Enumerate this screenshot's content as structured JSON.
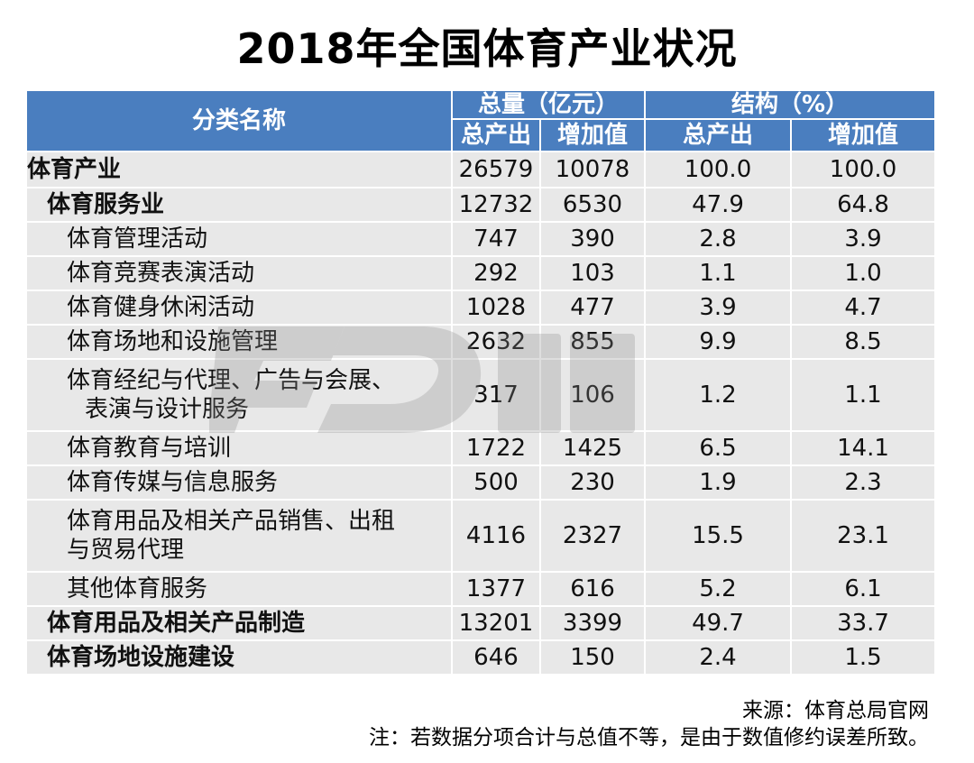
{
  "title": "2018年全国体育产业状况",
  "table": {
    "header_category": "分类名称",
    "group_total": "总量（亿元）",
    "group_structure": "结构（%）",
    "sub_output": "总产出",
    "sub_added_value": "增加值",
    "rows": [
      {
        "name": "体育产业",
        "output": "26579",
        "added": "10078",
        "output_pct": "100.0",
        "added_pct": "100.0"
      },
      {
        "name": "体育服务业",
        "output": "12732",
        "added": "6530",
        "output_pct": "47.9",
        "added_pct": "64.8"
      },
      {
        "name": "体育管理活动",
        "output": "747",
        "added": "390",
        "output_pct": "2.8",
        "added_pct": "3.9"
      },
      {
        "name": "体育竞赛表演活动",
        "output": "292",
        "added": "103",
        "output_pct": "1.1",
        "added_pct": "1.0"
      },
      {
        "name": "体育健身休闲活动",
        "output": "1028",
        "added": "477",
        "output_pct": "3.9",
        "added_pct": "4.7"
      },
      {
        "name": "体育场地和设施管理",
        "output": "2632",
        "added": "855",
        "output_pct": "9.9",
        "added_pct": "8.5"
      },
      {
        "name_line1": "体育经纪与代理、广告与会展、",
        "name_line2": "表演与设计服务",
        "output": "317",
        "added": "106",
        "output_pct": "1.2",
        "added_pct": "1.1"
      },
      {
        "name": "体育教育与培训",
        "output": "1722",
        "added": "1425",
        "output_pct": "6.5",
        "added_pct": "14.1"
      },
      {
        "name": "体育传媒与信息服务",
        "output": "500",
        "added": "230",
        "output_pct": "1.9",
        "added_pct": "2.3"
      },
      {
        "name_line1": "体育用品及相关产品销售、出租",
        "name_line2": "与贸易代理",
        "output": "4116",
        "added": "2327",
        "output_pct": "15.5",
        "added_pct": "23.1"
      },
      {
        "name": "其他体育服务",
        "output": "1377",
        "added": "616",
        "output_pct": "5.2",
        "added_pct": "6.1"
      },
      {
        "name": "体育用品及相关产品制造",
        "output": "13201",
        "added": "3399",
        "output_pct": "49.7",
        "added_pct": "33.7"
      },
      {
        "name": "体育场地设施建设",
        "output": "646",
        "added": "150",
        "output_pct": "2.4",
        "added_pct": "1.5"
      }
    ]
  },
  "source": "来源：体育总局官网",
  "note": "注：若数据分项合计与总值不等，是由于数值修约误差所致。",
  "colors": {
    "header_bg": "#4a7ebf",
    "row_bg": "#e8e8e8",
    "header_text": "#ffffff"
  }
}
